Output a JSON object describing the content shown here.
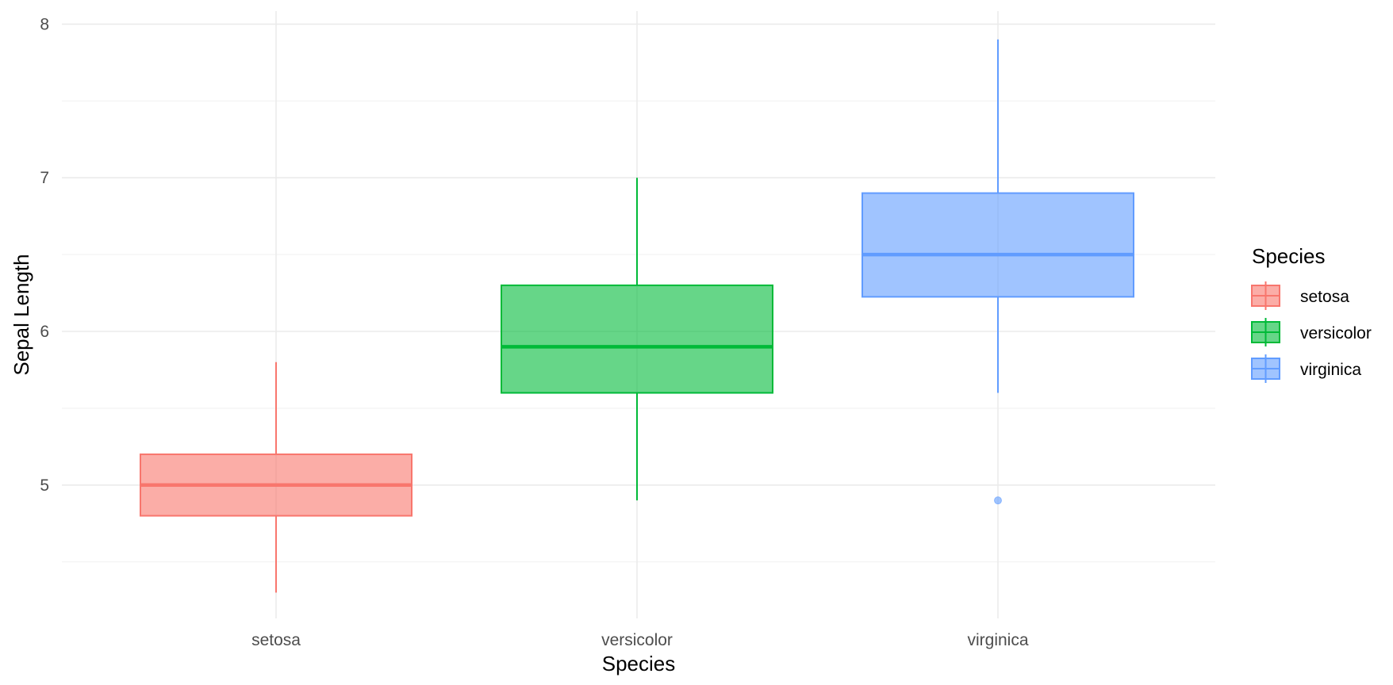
{
  "chart_data": {
    "type": "boxplot",
    "title": "",
    "xlabel": "Species",
    "ylabel": "Sepal Length",
    "categories": [
      "setosa",
      "versicolor",
      "virginica"
    ],
    "ylim": [
      4.1,
      8.1
    ],
    "y_ticks": [
      5,
      6,
      7,
      8
    ],
    "grid": true,
    "legend": {
      "title": "Species",
      "position": "right",
      "entries": [
        "setosa",
        "versicolor",
        "virginica"
      ]
    },
    "series": [
      {
        "name": "setosa",
        "color": "#F8766D",
        "min": 4.3,
        "q1": 4.8,
        "median": 5.0,
        "q3": 5.2,
        "max": 5.8,
        "outliers": []
      },
      {
        "name": "versicolor",
        "color": "#00BA38",
        "min": 4.9,
        "q1": 5.6,
        "median": 5.9,
        "q3": 6.3,
        "max": 7.0,
        "outliers": []
      },
      {
        "name": "virginica",
        "color": "#619CFF",
        "min": 5.6,
        "q1": 6.225,
        "median": 6.5,
        "q3": 6.9,
        "max": 7.9,
        "outliers": [
          4.9
        ]
      }
    ]
  }
}
